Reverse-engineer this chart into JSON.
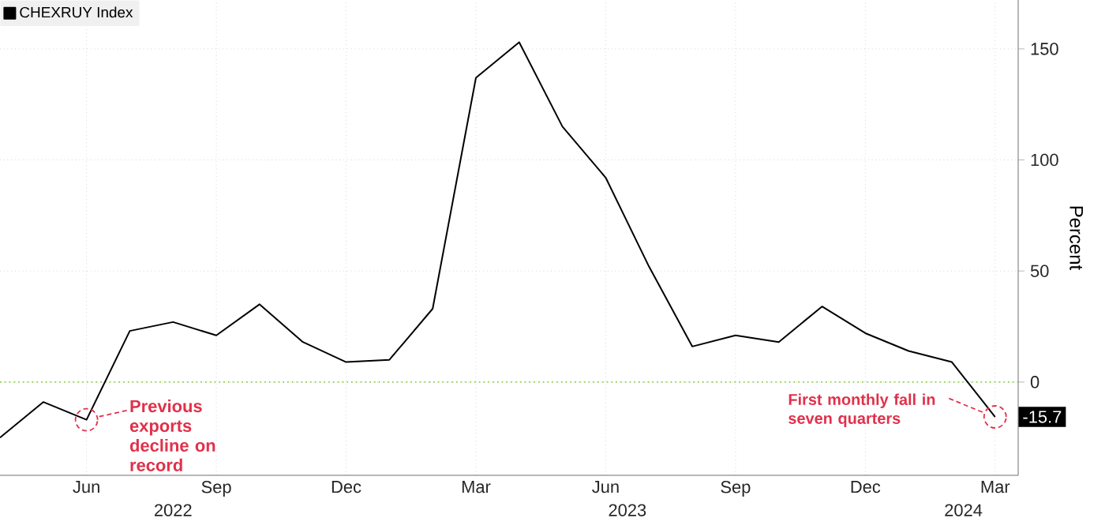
{
  "chart_data": {
    "type": "line",
    "x": [
      "2022-04",
      "2022-05",
      "2022-06",
      "2022-07",
      "2022-08",
      "2022-09",
      "2022-10",
      "2022-11",
      "2022-12",
      "2023-01",
      "2023-02",
      "2023-03",
      "2023-04",
      "2023-05",
      "2023-06",
      "2023-07",
      "2023-08",
      "2023-09",
      "2023-10",
      "2023-11",
      "2023-12",
      "2024-01",
      "2024-02",
      "2024-03"
    ],
    "series": [
      {
        "name": "CHEXRUY Index",
        "color": "#000000",
        "values": [
          -25,
          -9,
          -17,
          23,
          27,
          21,
          35,
          18,
          9,
          10,
          33,
          137,
          153,
          115,
          92,
          52,
          16,
          21,
          18,
          34,
          22,
          14,
          9,
          -15.7
        ],
        "value_labels": [
          null,
          null,
          null,
          null,
          null,
          null,
          null,
          null,
          null,
          null,
          null,
          null,
          null,
          null,
          null,
          null,
          null,
          null,
          null,
          null,
          null,
          null,
          null,
          "-15.7"
        ]
      }
    ],
    "ylabel": "Percent",
    "xlim": [
      "2022-04",
      "2024-03-17"
    ],
    "ylim": [
      -42,
      172
    ],
    "yticks": [
      0,
      50,
      100,
      150
    ],
    "xticks": [
      {
        "value": "2022-06",
        "label": "Jun"
      },
      {
        "value": "2022-09",
        "label": "Sep"
      },
      {
        "value": "2022-12",
        "label": "Dec"
      },
      {
        "value": "2023-03",
        "label": "Mar"
      },
      {
        "value": "2023-06",
        "label": "Jun"
      },
      {
        "value": "2023-09",
        "label": "Sep"
      },
      {
        "value": "2023-12",
        "label": "Dec"
      },
      {
        "value": "2024-03",
        "label": "Mar"
      }
    ],
    "ref_lines": [
      {
        "axis": "y",
        "value": 0,
        "color": "#8fd14f",
        "line_style": "dotted"
      }
    ],
    "annotations": [
      {
        "text": "Previous exports decline on record",
        "x": "2022-06",
        "y": -17
      },
      {
        "text": "First monthly fall in seven quarters",
        "x": "2024-03",
        "y": -15.7
      },
      "2022",
      "2023",
      "2024"
    ],
    "grid": true,
    "legend": "top left",
    "marker": "none",
    "line_style": "solid"
  }
}
